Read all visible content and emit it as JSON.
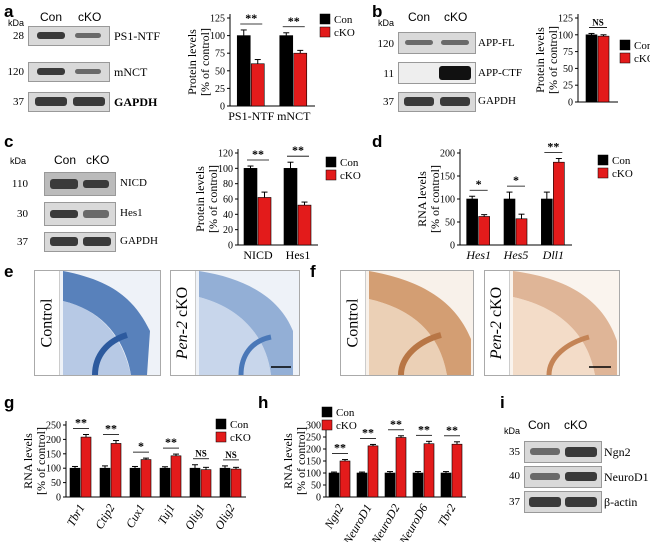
{
  "panels": {
    "a": "a",
    "b": "b",
    "c": "c",
    "d": "d",
    "e": "e",
    "f": "f",
    "g": "g",
    "h": "h",
    "i": "i"
  },
  "colors": {
    "con": "#000000",
    "cko": "#e31b1b"
  },
  "blots": {
    "a": {
      "kda": "kDa",
      "lanes": [
        "Con",
        "cKO"
      ],
      "rows": [
        {
          "mw": "28",
          "label": "PS1-NTF"
        },
        {
          "mw": "120",
          "label": "mNCT"
        },
        {
          "mw": "37",
          "label": "GAPDH"
        }
      ]
    },
    "b": {
      "kda": "kDa",
      "lanes": [
        "Con",
        "cKO"
      ],
      "rows": [
        {
          "mw": "120",
          "label": "APP-FL"
        },
        {
          "mw": "11",
          "label": "APP-CTF"
        },
        {
          "mw": "37",
          "label": "GAPDH"
        }
      ]
    },
    "c": {
      "kda": "kDa",
      "lanes": [
        "Con",
        "cKO"
      ],
      "rows": [
        {
          "mw": "110",
          "label": "NICD"
        },
        {
          "mw": "30",
          "label": "Hes1"
        },
        {
          "mw": "37",
          "label": "GAPDH"
        }
      ]
    },
    "i": {
      "kda": "kDa",
      "lanes": [
        "Con",
        "cKO"
      ],
      "rows": [
        {
          "mw": "35",
          "label": "Ngn2"
        },
        {
          "mw": "40",
          "label": "NeuroD1"
        },
        {
          "mw": "37",
          "label": "β-actin"
        }
      ]
    }
  },
  "micrographs": {
    "e": {
      "left": "Control",
      "right_italic": "Pen-2",
      "right_rest": " cKO"
    },
    "f": {
      "left": "Control",
      "right_italic": "Pen-2",
      "right_rest": " cKO"
    }
  },
  "chart_data": [
    {
      "id": "a",
      "type": "bar",
      "categories": [
        "PS1-NTF",
        "mNCT"
      ],
      "series": [
        {
          "name": "Con",
          "values": [
            100,
            100
          ]
        },
        {
          "name": "cKO",
          "values": [
            60,
            75
          ]
        }
      ],
      "errors": [
        [
          8,
          4
        ],
        [
          6,
          4
        ]
      ],
      "sig": [
        "**",
        "**"
      ],
      "ylabel": [
        "Protein levels",
        "[% of control]"
      ],
      "ylim": [
        0,
        125
      ],
      "yticks": [
        0,
        25,
        50,
        75,
        100,
        125
      ],
      "italic_categories": false
    },
    {
      "id": "b",
      "type": "bar",
      "categories": [
        ""
      ],
      "series": [
        {
          "name": "Con",
          "values": [
            100
          ]
        },
        {
          "name": "cKO",
          "values": [
            98
          ]
        }
      ],
      "errors": [
        [
          2
        ],
        [
          2
        ]
      ],
      "sig": [
        "NS"
      ],
      "ylabel": [
        "Protein levels",
        "[% of control]"
      ],
      "ylim": [
        0,
        125
      ],
      "yticks": [
        0,
        25,
        50,
        75,
        100,
        125
      ],
      "italic_categories": false
    },
    {
      "id": "c",
      "type": "bar",
      "categories": [
        "NICD",
        "Hes1"
      ],
      "series": [
        {
          "name": "Con",
          "values": [
            100,
            100
          ]
        },
        {
          "name": "cKO",
          "values": [
            62,
            52
          ]
        }
      ],
      "errors": [
        [
          3,
          8
        ],
        [
          7,
          4
        ]
      ],
      "sig": [
        "**",
        "**"
      ],
      "ylabel": [
        "Protein levels",
        "[% of control]"
      ],
      "ylim": [
        0,
        120
      ],
      "yticks": [
        0,
        20,
        40,
        60,
        80,
        100,
        120
      ],
      "italic_categories": false
    },
    {
      "id": "d",
      "type": "bar",
      "categories": [
        "Hes1",
        "Hes5",
        "Dll1"
      ],
      "series": [
        {
          "name": "Con",
          "values": [
            100,
            100,
            100
          ]
        },
        {
          "name": "cKO",
          "values": [
            62,
            57,
            180
          ]
        }
      ],
      "errors": [
        [
          6,
          15,
          15
        ],
        [
          4,
          10,
          8
        ]
      ],
      "sig": [
        "*",
        "*",
        "**"
      ],
      "ylabel": [
        "RNA levels",
        "[% of control]"
      ],
      "ylim": [
        0,
        200
      ],
      "yticks": [
        0,
        50,
        100,
        150,
        200
      ],
      "italic_categories": true
    },
    {
      "id": "g",
      "type": "bar",
      "categories": [
        "Tbr1",
        "Ctip2",
        "Cux1",
        "Tuj1",
        "Olig1",
        "Olig2"
      ],
      "series": [
        {
          "name": "Con",
          "values": [
            100,
            100,
            100,
            100,
            100,
            100
          ]
        },
        {
          "name": "cKO",
          "values": [
            208,
            186,
            130,
            143,
            95,
            97
          ]
        }
      ],
      "errors": [
        [
          6,
          8,
          6,
          5,
          12,
          8
        ],
        [
          9,
          10,
          5,
          6,
          8,
          6
        ]
      ],
      "sig": [
        "**",
        "**",
        "*",
        "**",
        "NS",
        "NS"
      ],
      "ylabel": [
        "RNA levels",
        "[% of control]"
      ],
      "ylim": [
        0,
        250
      ],
      "yticks": [
        0,
        50,
        100,
        150,
        200,
        250
      ],
      "italic_categories": true
    },
    {
      "id": "h",
      "type": "bar",
      "categories": [
        "Ngn2",
        "NeuroD1",
        "NeuroD2",
        "NeuroD6",
        "Tbr2"
      ],
      "series": [
        {
          "name": "Con",
          "values": [
            100,
            100,
            100,
            100,
            100
          ]
        },
        {
          "name": "cKO",
          "values": [
            150,
            213,
            248,
            222,
            220
          ]
        }
      ],
      "errors": [
        [
          4,
          4,
          6,
          6,
          6
        ],
        [
          6,
          6,
          7,
          10,
          10
        ]
      ],
      "sig": [
        "**",
        "**",
        "**",
        "**",
        "**"
      ],
      "ylabel": [
        "RNA levels",
        "[% of control]"
      ],
      "ylim": [
        0,
        300
      ],
      "yticks": [
        0,
        50,
        100,
        150,
        200,
        250,
        300
      ],
      "italic_categories": true
    }
  ]
}
